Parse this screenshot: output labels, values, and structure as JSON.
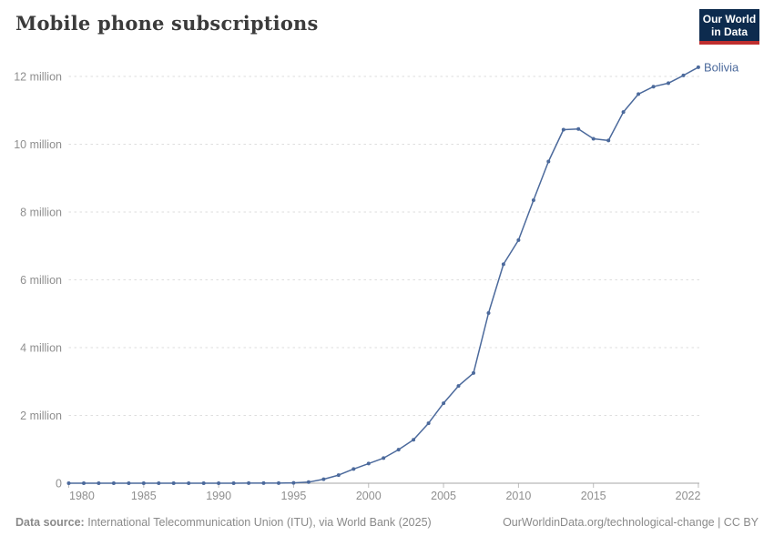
{
  "header": {
    "title": "Mobile phone subscriptions",
    "logo": {
      "line1": "Our World",
      "line2": "in Data"
    }
  },
  "chart_data": {
    "type": "line",
    "title": "Mobile phone subscriptions",
    "unit": "subscriptions (millions)",
    "xlim": [
      1980,
      2022
    ],
    "ylim": [
      0,
      12.4
    ],
    "grid": "horizontal-dashed",
    "legend": "end-of-line-label",
    "x_ticks": [
      1980,
      1985,
      1990,
      1995,
      2000,
      2005,
      2010,
      2015,
      2022
    ],
    "y_ticks": [
      {
        "v": 0,
        "label": "0"
      },
      {
        "v": 2,
        "label": "2 million"
      },
      {
        "v": 4,
        "label": "4 million"
      },
      {
        "v": 6,
        "label": "6 million"
      },
      {
        "v": 8,
        "label": "8 million"
      },
      {
        "v": 10,
        "label": "10 million"
      },
      {
        "v": 12,
        "label": "12 million"
      }
    ],
    "series": [
      {
        "name": "Bolivia",
        "color": "#4c6a9c",
        "x": [
          1980,
          1981,
          1982,
          1983,
          1984,
          1985,
          1986,
          1987,
          1988,
          1989,
          1990,
          1991,
          1992,
          1993,
          1994,
          1995,
          1996,
          1997,
          1998,
          1999,
          2000,
          2001,
          2002,
          2003,
          2004,
          2005,
          2006,
          2007,
          2008,
          2009,
          2010,
          2011,
          2012,
          2013,
          2014,
          2015,
          2016,
          2017,
          2018,
          2019,
          2020,
          2021,
          2022
        ],
        "values": [
          0,
          0,
          0,
          0,
          0,
          0,
          0,
          0,
          0,
          0,
          0,
          0.0003,
          0.002,
          0.003,
          0.004,
          0.01,
          0.033,
          0.118,
          0.24,
          0.42,
          0.58,
          0.74,
          0.99,
          1.28,
          1.77,
          2.36,
          2.87,
          3.25,
          5.02,
          6.46,
          7.17,
          8.35,
          9.49,
          10.43,
          10.45,
          10.16,
          10.11,
          10.95,
          11.48,
          11.7,
          11.8,
          12.03,
          12.27
        ]
      }
    ]
  },
  "colors": {
    "line": "#4c6a9c",
    "grid": "#dedede",
    "axis": "#a6a6a6",
    "tick": "#bdbdbd",
    "axis_text": "#8f8f8f",
    "title_text": "#3b3b3b",
    "logo_bg": "#0d2b4e",
    "logo_red": "#bf2e2e"
  },
  "footer": {
    "source_label": "Data source:",
    "source_text": " International Telecommunication Union (ITU), via World Bank (2025)",
    "link_text": "OurWorldinData.org/technological-change | CC BY"
  }
}
